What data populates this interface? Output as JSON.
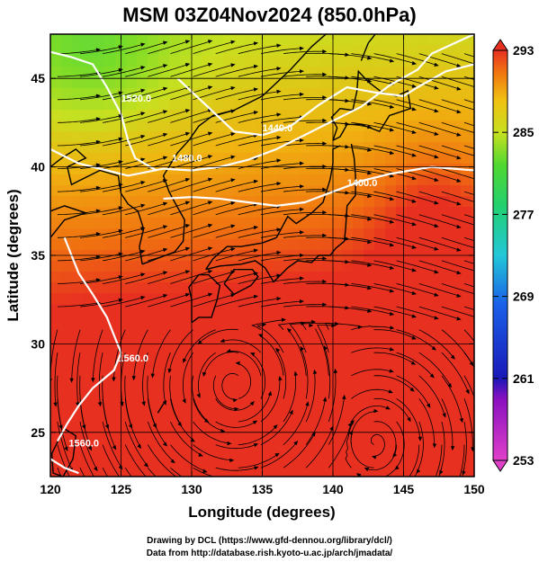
{
  "title": "MSM 03Z04Nov2024 (850.0hPa)",
  "chart_data": {
    "type": "heatmap",
    "variable": "temperature",
    "x_label": "Longitude (degrees)",
    "y_label": "Latitude  (degrees)",
    "x_range": [
      120,
      150
    ],
    "y_range": [
      22.5,
      47.5
    ],
    "x_ticks": [
      120,
      125,
      130,
      135,
      140,
      145,
      150
    ],
    "y_ticks": [
      25,
      30,
      35,
      40,
      45
    ],
    "colorbar": {
      "min": 253,
      "max": 293,
      "ticks": [
        253,
        261,
        269,
        277,
        285,
        293
      ]
    },
    "contour_labels": [
      "1520.0",
      "1480.0",
      "1440.0",
      "1400.0",
      "1560.0",
      "1560.0"
    ],
    "overlays": [
      "streamlines",
      "coastlines",
      "geopotential height contours"
    ]
  },
  "credits": {
    "line1": "Drawing by DCL (https://www.gfd-dennou.org/library/dcl/)",
    "line2": "Data from http://database.rish.kyoto-u.ac.jp/arch/jmadata/"
  },
  "colors": {
    "contour": "#ffffff",
    "coast": "#000000",
    "stream": "#000000"
  }
}
